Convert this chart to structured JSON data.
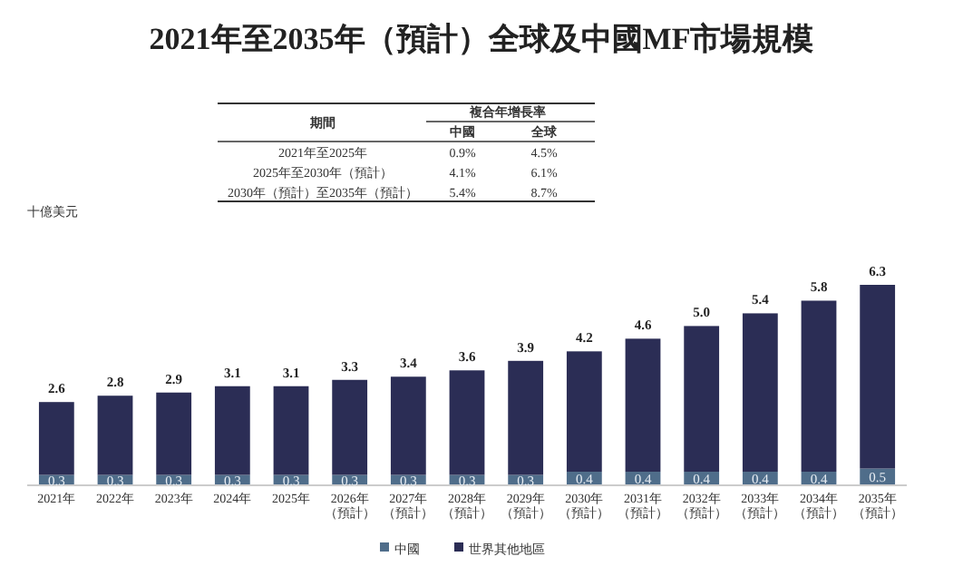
{
  "chart_data": {
    "type": "bar",
    "stacked": true,
    "title": "2021年至2035年（預計）全球及中國MF市場規模",
    "categories": [
      "2021年",
      "2022年",
      "2023年",
      "2024年",
      "2025年",
      "2026年（預計）",
      "2027年（預計）",
      "2028年（預計）",
      "2029年（預計）",
      "2030年（預計）",
      "2031年（預計）",
      "2032年（預計）",
      "2033年（預計）",
      "2034年（預計）",
      "2035年（預計）"
    ],
    "series": [
      {
        "name": "中國",
        "color": "#4f6d8a",
        "values": [
          0.3,
          0.3,
          0.3,
          0.3,
          0.3,
          0.3,
          0.3,
          0.3,
          0.3,
          0.4,
          0.4,
          0.4,
          0.4,
          0.4,
          0.5
        ],
        "value_labels": [
          "0.3",
          "0.3",
          "0.3",
          "0.3",
          "0.3",
          "0.3",
          "0.3",
          "0.3",
          "0.3",
          "0.4",
          "0.4",
          "0.4",
          "0.4",
          "0.4",
          "0.5"
        ]
      },
      {
        "name": "世界其他地區",
        "color": "#2b2d55",
        "values": [
          2.3,
          2.5,
          2.6,
          2.8,
          2.8,
          3.0,
          3.1,
          3.3,
          3.6,
          3.8,
          4.2,
          4.6,
          5.0,
          5.4,
          5.8
        ]
      }
    ],
    "totals": [
      "2.6",
      "2.8",
      "2.9",
      "3.1",
      "3.1",
      "3.3",
      "3.4",
      "3.6",
      "3.9",
      "4.2",
      "4.6",
      "5.0",
      "5.4",
      "5.8",
      "6.3"
    ],
    "annotations": [
      "期間",
      "複合年增長率",
      "中國",
      "全球",
      "2021年至2025年",
      "0.9%",
      "4.5%",
      "2025年至2030年（預計）",
      "4.1%",
      "6.1%",
      "2030年（預計）至2035年（預計）",
      "5.4%",
      "8.7%",
      "十億美元"
    ],
    "legend": "bottom"
  }
}
